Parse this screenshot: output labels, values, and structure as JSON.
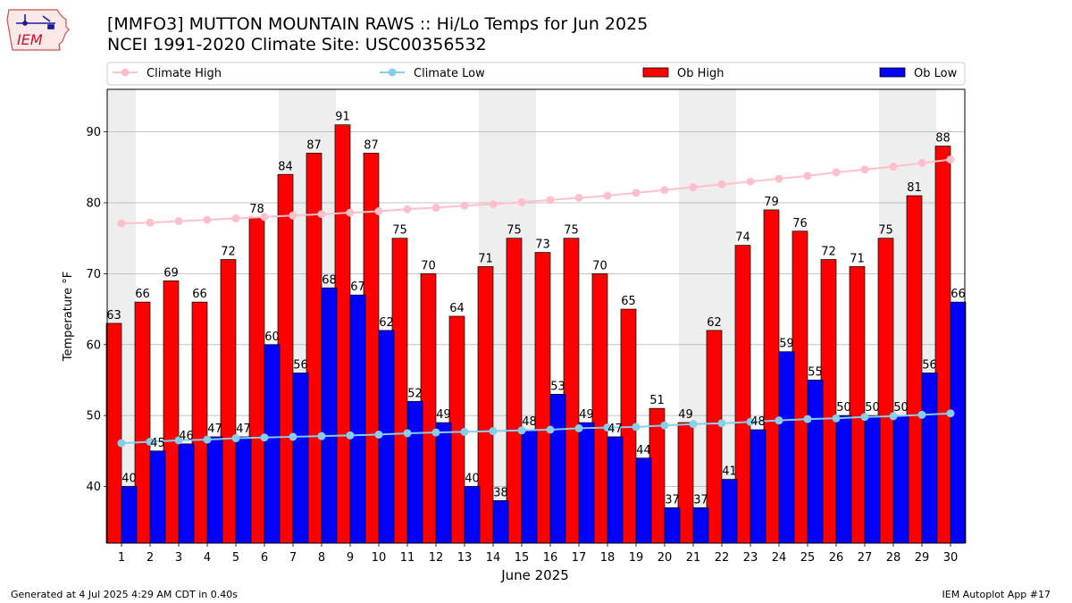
{
  "header": {
    "logo_text": "IEM",
    "title_line1": "[MMFO3] MUTTON MOUNTAIN RAWS :: Hi/Lo Temps for Jun 2025",
    "title_line2": "NCEI 1991-2020 Climate Site: USC00356532"
  },
  "footer": {
    "generated": "Generated at 4 Jul 2025 4:29 AM CDT in 0.40s",
    "app": "IEM Autoplot App #17"
  },
  "colors": {
    "ob_high": "#ff0000",
    "ob_low": "#0000ff",
    "climate_high": "#ffc0cb",
    "climate_low": "#87ceeb",
    "weekend_shade": "#eeeeee",
    "grid": "#b0b0b0"
  },
  "chart_data": {
    "type": "bar",
    "xlabel": "June 2025",
    "ylabel": "Temperature °F",
    "ylim": [
      32,
      96
    ],
    "yticks": [
      40,
      50,
      60,
      70,
      80,
      90
    ],
    "grid": "horizontal",
    "legend_position": "top",
    "categories": [
      "1",
      "2",
      "3",
      "4",
      "5",
      "6",
      "7",
      "8",
      "9",
      "10",
      "11",
      "12",
      "13",
      "14",
      "15",
      "16",
      "17",
      "18",
      "19",
      "20",
      "21",
      "22",
      "23",
      "24",
      "25",
      "26",
      "27",
      "28",
      "29",
      "30"
    ],
    "shaded_days": [
      1,
      7,
      8,
      14,
      15,
      21,
      22,
      28,
      29
    ],
    "series": [
      {
        "name": "Ob High",
        "kind": "bar",
        "values": [
          63,
          66,
          69,
          66,
          72,
          78,
          84,
          87,
          91,
          87,
          75,
          70,
          64,
          71,
          75,
          73,
          75,
          70,
          65,
          51,
          49,
          62,
          74,
          79,
          76,
          72,
          71,
          75,
          81,
          88
        ]
      },
      {
        "name": "Ob Low",
        "kind": "bar",
        "values": [
          40,
          45,
          46,
          47,
          47,
          60,
          56,
          68,
          67,
          62,
          52,
          49,
          40,
          38,
          48,
          53,
          49,
          47,
          44,
          37,
          37,
          41,
          48,
          59,
          55,
          50,
          50,
          50,
          56,
          66
        ]
      },
      {
        "name": "Climate High",
        "kind": "line",
        "values": [
          77.1,
          77.2,
          77.4,
          77.6,
          77.8,
          78.0,
          78.2,
          78.4,
          78.6,
          78.8,
          79.1,
          79.3,
          79.6,
          79.8,
          80.1,
          80.4,
          80.7,
          81.0,
          81.4,
          81.8,
          82.2,
          82.6,
          83.0,
          83.4,
          83.8,
          84.3,
          84.7,
          85.1,
          85.6,
          86.1
        ]
      },
      {
        "name": "Climate Low",
        "kind": "line",
        "values": [
          46.1,
          46.3,
          46.5,
          46.6,
          46.8,
          46.9,
          47.0,
          47.1,
          47.2,
          47.3,
          47.5,
          47.6,
          47.7,
          47.8,
          47.9,
          48.0,
          48.2,
          48.3,
          48.4,
          48.6,
          48.8,
          48.9,
          49.1,
          49.3,
          49.5,
          49.6,
          49.8,
          49.9,
          50.1,
          50.3
        ]
      }
    ]
  }
}
